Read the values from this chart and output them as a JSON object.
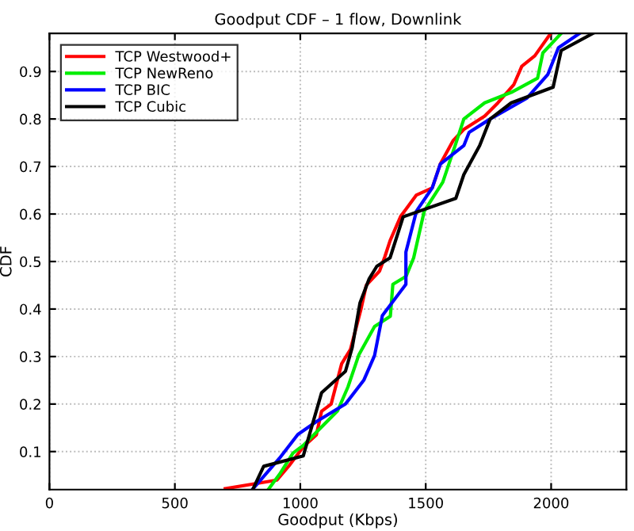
{
  "chart_data": {
    "type": "line",
    "title": "Goodput CDF – 1 flow, Downlink",
    "xlabel": "Goodput (Kbps)",
    "ylabel": "CDF",
    "xlim": [
      0,
      2300
    ],
    "xticks": [
      0,
      500,
      1000,
      1500,
      2000
    ],
    "ylim": [
      0.02,
      0.98
    ],
    "yticks": [
      0.1,
      0.2,
      0.3,
      0.4,
      0.5,
      0.6,
      0.7,
      0.8,
      0.9
    ],
    "grid": true,
    "legend": "top left",
    "line_style": "solid",
    "marker": "none",
    "series": [
      {
        "name": "TCP Westwood+",
        "color": "#ff0000",
        "x": [
          701,
          907,
          955,
          1012,
          1064,
          1085,
          1123,
          1165,
          1200,
          1242,
          1263,
          1316,
          1337,
          1358,
          1400,
          1463,
          1526,
          1558,
          1610,
          1652,
          1735,
          1788,
          1851,
          1883,
          1935,
          1998
        ],
        "values": [
          0.022,
          0.04,
          0.07,
          0.11,
          0.135,
          0.185,
          0.2,
          0.285,
          0.315,
          0.4,
          0.45,
          0.48,
          0.51,
          0.544,
          0.595,
          0.64,
          0.655,
          0.705,
          0.755,
          0.778,
          0.806,
          0.834,
          0.872,
          0.911,
          0.933,
          0.98
        ]
      },
      {
        "name": "TCP NewReno",
        "color": "#00ee00",
        "x": [
          875,
          917,
          971,
          1012,
          1149,
          1190,
          1233,
          1296,
          1359,
          1369,
          1422,
          1452,
          1494,
          1568,
          1621,
          1652,
          1735,
          1841,
          1946,
          1967,
          2040
        ],
        "values": [
          0.022,
          0.052,
          0.097,
          0.113,
          0.186,
          0.236,
          0.303,
          0.363,
          0.385,
          0.452,
          0.469,
          0.508,
          0.606,
          0.667,
          0.75,
          0.8,
          0.834,
          0.856,
          0.886,
          0.939,
          0.98
        ]
      },
      {
        "name": "TCP BIC",
        "color": "#0000ff",
        "x": [
          812,
          917,
          990,
          1064,
          1180,
          1253,
          1296,
          1327,
          1421,
          1421,
          1463,
          1526,
          1558,
          1652,
          1673,
          1757,
          1904,
          1987,
          2029,
          2113
        ],
        "values": [
          0.022,
          0.086,
          0.136,
          0.163,
          0.2,
          0.25,
          0.302,
          0.386,
          0.452,
          0.52,
          0.606,
          0.655,
          0.705,
          0.744,
          0.772,
          0.8,
          0.844,
          0.894,
          0.95,
          0.98
        ]
      },
      {
        "name": "TCP Cubic",
        "color": "#000000",
        "x": [
          812,
          854,
          1012,
          1085,
          1180,
          1207,
          1238,
          1274,
          1305,
          1358,
          1410,
          1620,
          1652,
          1715,
          1757,
          1841,
          2008,
          2040,
          2166
        ],
        "values": [
          0.022,
          0.069,
          0.091,
          0.224,
          0.269,
          0.319,
          0.413,
          0.463,
          0.49,
          0.508,
          0.594,
          0.633,
          0.683,
          0.744,
          0.8,
          0.834,
          0.867,
          0.944,
          0.98
        ]
      }
    ]
  }
}
